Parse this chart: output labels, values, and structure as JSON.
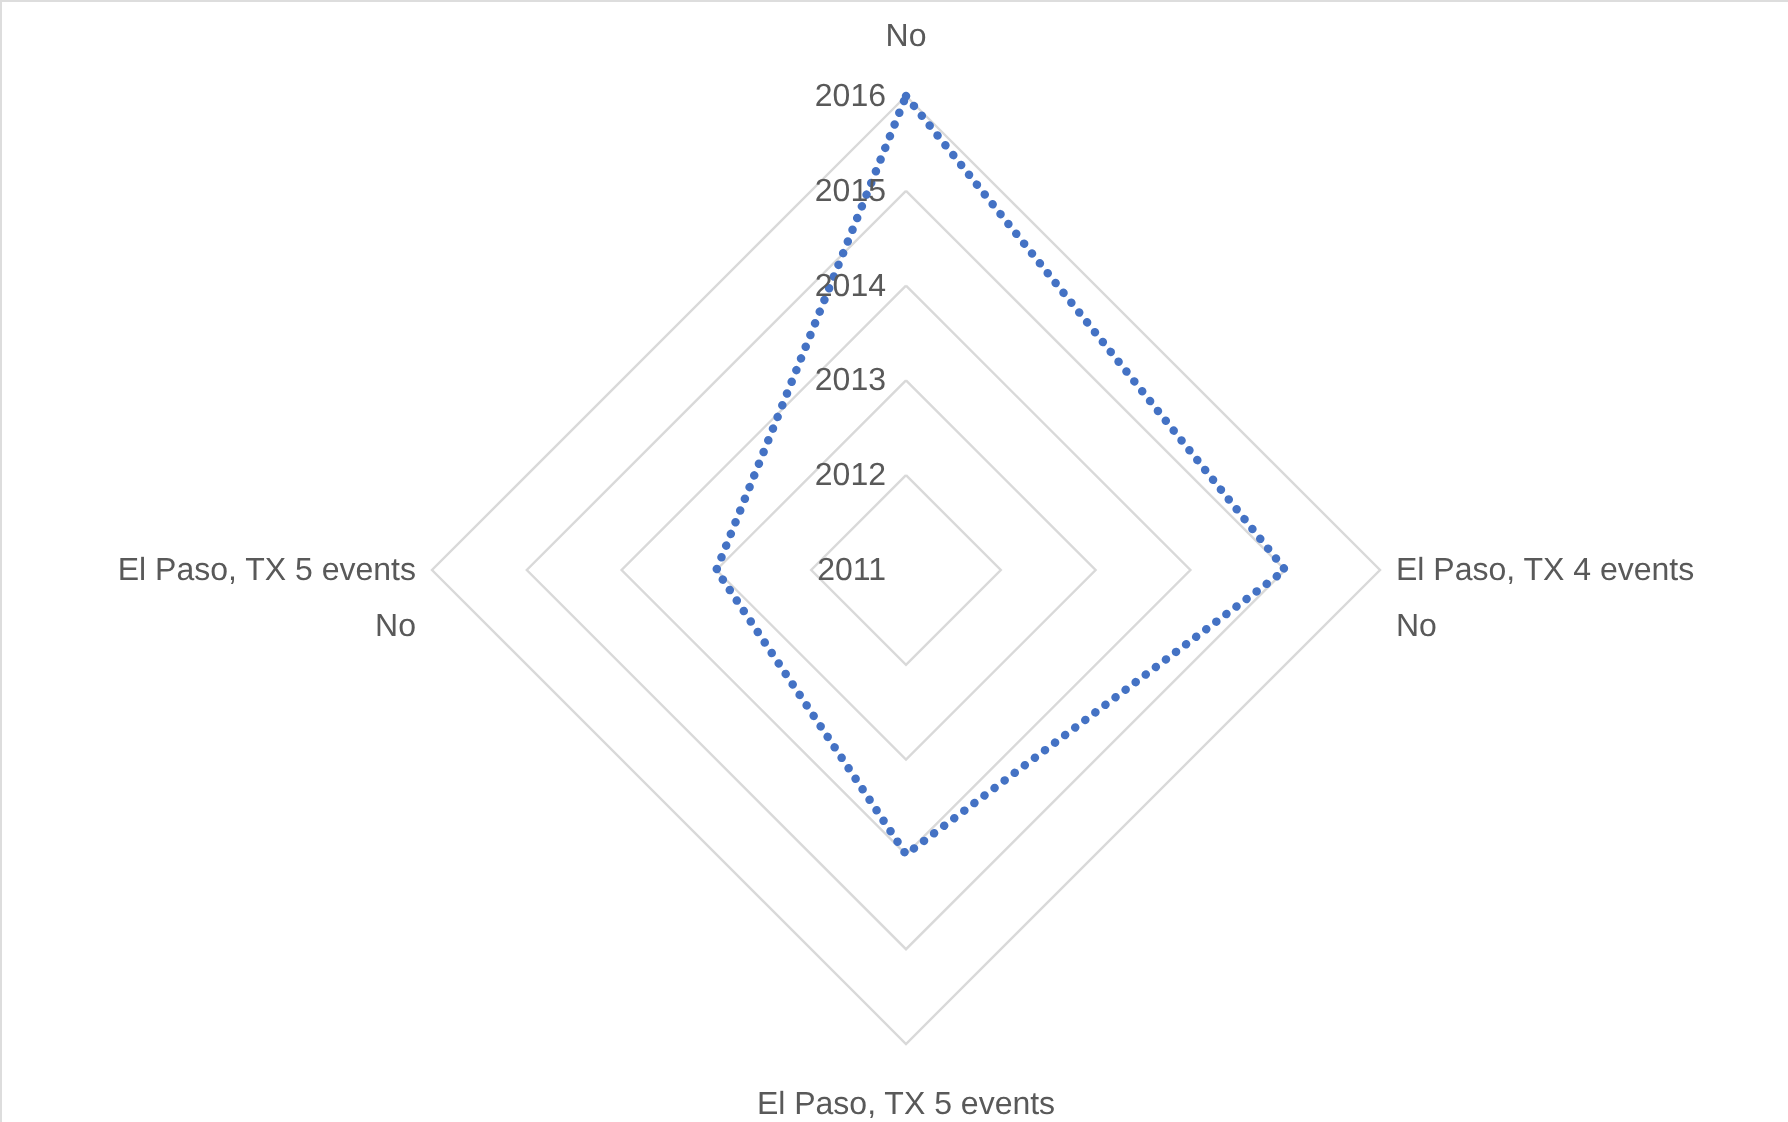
{
  "chart_data": {
    "type": "radar",
    "categories": [
      "No",
      "El Paso, TX 4 events\nNo",
      "El Paso, TX 5 events",
      "El Paso, TX 5 events\nNo"
    ],
    "series": [
      {
        "color": "#4472c4",
        "values": [
          2016,
          2015,
          2014,
          2013
        ]
      }
    ],
    "ylim": [
      2011,
      2016
    ],
    "yticks": [
      2011,
      2012,
      2013,
      2014,
      2015,
      2016
    ],
    "grid": true,
    "marker": "none",
    "line_style": "dotted"
  }
}
